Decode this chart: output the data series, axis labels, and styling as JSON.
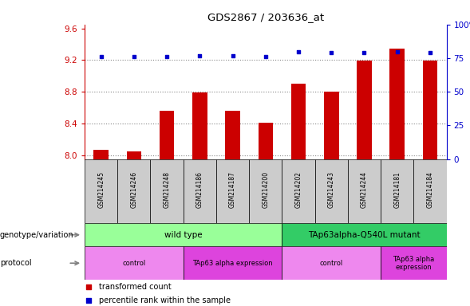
{
  "title": "GDS2867 / 203636_at",
  "samples": [
    "GSM214245",
    "GSM214246",
    "GSM214248",
    "GSM214186",
    "GSM214187",
    "GSM214200",
    "GSM214202",
    "GSM214243",
    "GSM214244",
    "GSM214181",
    "GSM214184"
  ],
  "transformed_counts": [
    8.07,
    8.05,
    8.56,
    8.79,
    8.56,
    8.41,
    8.9,
    8.8,
    9.19,
    9.35,
    9.19
  ],
  "percentile_ranks": [
    76,
    76,
    76,
    77,
    77,
    76,
    80,
    79,
    79,
    80,
    79
  ],
  "ylim_left": [
    7.95,
    9.65
  ],
  "ylim_right": [
    0,
    100
  ],
  "yticks_left": [
    8.0,
    8.4,
    8.8,
    9.2,
    9.6
  ],
  "yticks_right": [
    0,
    25,
    50,
    75,
    100
  ],
  "bar_color": "#cc0000",
  "dot_color": "#0000cc",
  "bar_bottom": 7.95,
  "genotype_groups": [
    {
      "label": "wild type",
      "start": 0,
      "end": 6,
      "color": "#99ff99"
    },
    {
      "label": "TAp63alpha-Q540L mutant",
      "start": 6,
      "end": 11,
      "color": "#33cc66"
    }
  ],
  "protocol_groups": [
    {
      "label": "control",
      "start": 0,
      "end": 3,
      "color": "#ee88ee"
    },
    {
      "label": "TAp63 alpha expression",
      "start": 3,
      "end": 6,
      "color": "#dd44dd"
    },
    {
      "label": "control",
      "start": 6,
      "end": 9,
      "color": "#ee88ee"
    },
    {
      "label": "TAp63 alpha\nexpression",
      "start": 9,
      "end": 11,
      "color": "#dd44dd"
    }
  ],
  "left_axis_color": "#cc0000",
  "right_axis_color": "#0000cc",
  "grid_color": "#888888",
  "sample_bg_color": "#cccccc",
  "label_color_geno": "genotype/variation",
  "label_color_proto": "protocol"
}
